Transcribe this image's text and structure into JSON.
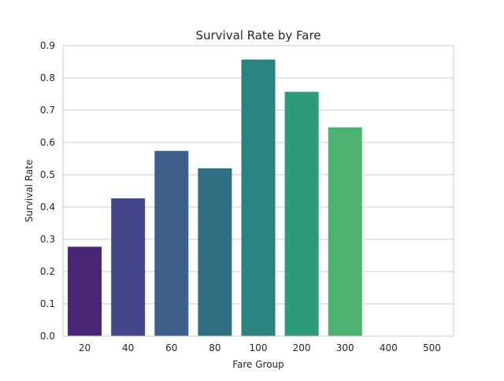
{
  "chart_data": {
    "type": "bar",
    "title": "Survival Rate by Fare",
    "xlabel": "Fare Group",
    "ylabel": "Survival Rate",
    "categories": [
      "20",
      "40",
      "60",
      "80",
      "100",
      "200",
      "300",
      "400",
      "500"
    ],
    "values": [
      0.277,
      0.427,
      0.574,
      0.52,
      0.857,
      0.757,
      0.647,
      0,
      0
    ],
    "ylim": [
      0,
      0.9
    ],
    "yticks": [
      "0.0",
      "0.1",
      "0.2",
      "0.3",
      "0.4",
      "0.5",
      "0.6",
      "0.7",
      "0.8",
      "0.9"
    ],
    "grid": "horizontal",
    "colors": [
      "#482575",
      "#46478b",
      "#3e5f8c",
      "#306f81",
      "#2a837f",
      "#2d9a7b",
      "#4cb271",
      "#7fcd56",
      "#b8de29"
    ]
  }
}
